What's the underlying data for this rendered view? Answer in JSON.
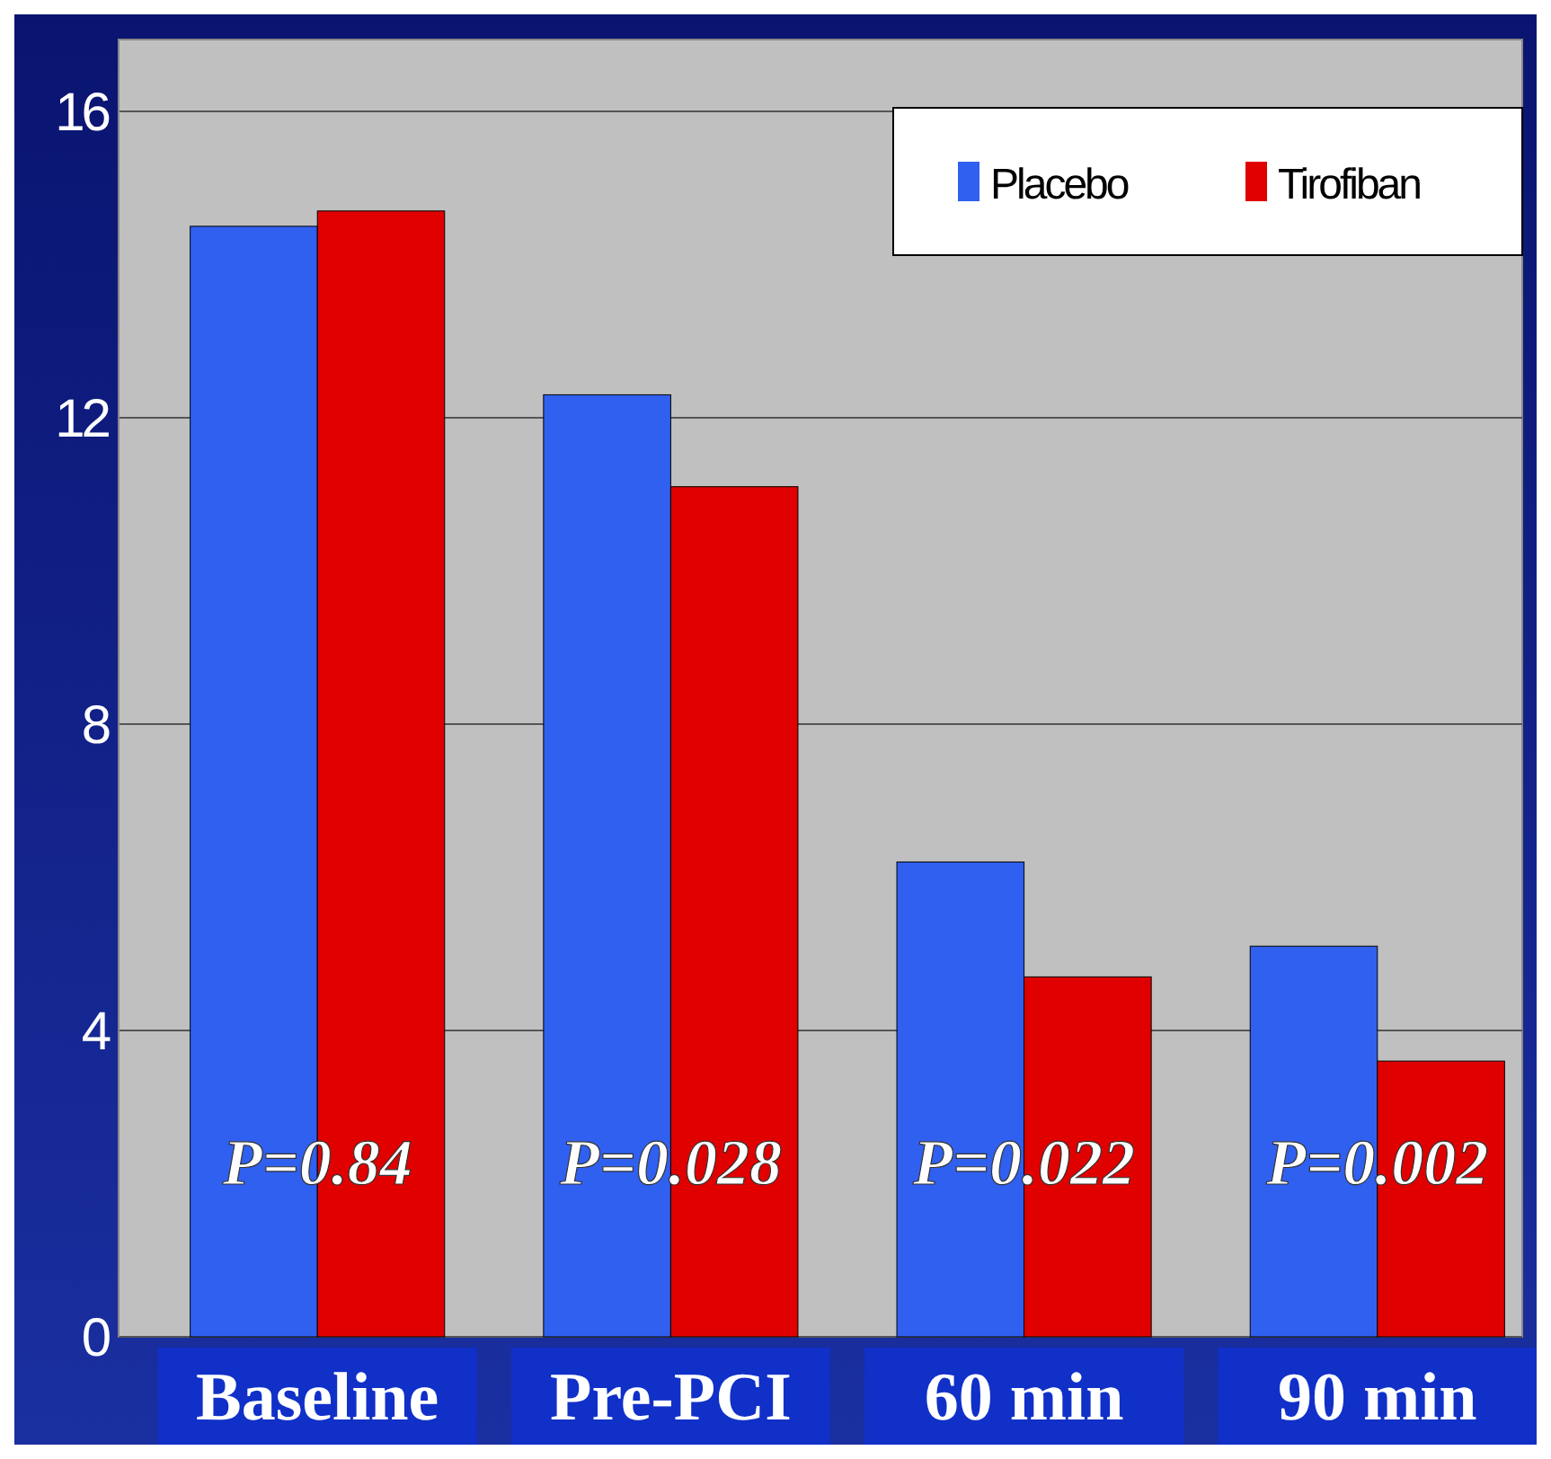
{
  "chart_data": {
    "type": "bar",
    "categories": [
      "Baseline",
      "Pre-PCI",
      "60 min",
      "90 min"
    ],
    "series": [
      {
        "name": "Placebo",
        "color": "#3060f0",
        "values": [
          14.5,
          12.3,
          6.2,
          5.1
        ]
      },
      {
        "name": "Tirofiban",
        "color": "#e00000",
        "values": [
          14.7,
          11.1,
          4.7,
          3.6
        ]
      }
    ],
    "ylim": [
      0,
      16
    ],
    "yticks": [
      0,
      4,
      8,
      12,
      16
    ],
    "grid": "y",
    "legend": "top right",
    "annotations": [
      "P=0.84",
      "P=0.028",
      "P=0.022",
      "P=0.002"
    ]
  }
}
